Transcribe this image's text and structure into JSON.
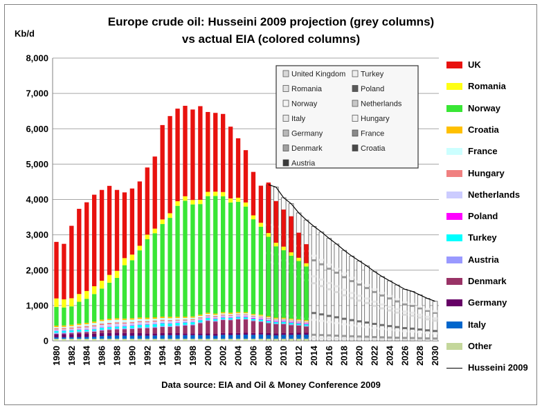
{
  "title_line1": "Europe crude oil: Husseini 2009 projection (grey columns)",
  "title_line2": "vs actual EIA (colored columns)",
  "unit": "Kb/d",
  "source": "Data source: EIA and Oil & Money Conference 2009",
  "legend": [
    {
      "label": "UK",
      "color": "#e8120f"
    },
    {
      "label": "Romania",
      "color": "#ffff14"
    },
    {
      "label": "Norway",
      "color": "#39e635"
    },
    {
      "label": "Croatia",
      "color": "#ffc000"
    },
    {
      "label": "France",
      "color": "#ccffff"
    },
    {
      "label": "Hungary",
      "color": "#f08080"
    },
    {
      "label": "Netherlands",
      "color": "#ccccff"
    },
    {
      "label": "Poland",
      "color": "#ff00ff"
    },
    {
      "label": "Turkey",
      "color": "#00ffff"
    },
    {
      "label": "Austria",
      "color": "#9999ff"
    },
    {
      "label": "Denmark",
      "color": "#993366"
    },
    {
      "label": "Germany",
      "color": "#660066"
    },
    {
      "label": "Italy",
      "color": "#0066cc"
    },
    {
      "label": "Other",
      "color": "#c4d79b"
    },
    {
      "label": "Husseini 2009",
      "color": "#000000"
    }
  ],
  "inset_legend": [
    "United Kingdom",
    "Turkey",
    "Romania",
    "Poland",
    "Norway",
    "Netherlands",
    "Italy",
    "Hungary",
    "Germany",
    "France",
    "Denmark",
    "Croatia",
    "Austria"
  ],
  "chart_data": {
    "type": "bar",
    "stacked": true,
    "title": "Europe crude oil: Husseini 2009 projection (grey columns) vs actual EIA (colored columns)",
    "ylabel": "Kb/d",
    "ylim": [
      0,
      8000
    ],
    "yticks": [
      0,
      1000,
      2000,
      3000,
      4000,
      5000,
      6000,
      7000,
      8000
    ],
    "ytick_labels": [
      "0",
      "1,000",
      "2,000",
      "3,000",
      "4,000",
      "5,000",
      "6,000",
      "7,000",
      "8,000"
    ],
    "x_tick_labels": [
      "1980",
      "1982",
      "1984",
      "1986",
      "1988",
      "1990",
      "1992",
      "1994",
      "1996",
      "1998",
      "2000",
      "2002",
      "2004",
      "2006",
      "2008",
      "2010",
      "2012",
      "2014",
      "2016",
      "2018",
      "2020",
      "2022",
      "2024",
      "2026",
      "2028",
      "2030"
    ],
    "grid": true,
    "legend_position": "right",
    "actual_years": [
      1980,
      1981,
      1982,
      1983,
      1984,
      1985,
      1986,
      1987,
      1988,
      1989,
      1990,
      1991,
      1992,
      1993,
      1994,
      1995,
      1996,
      1997,
      1998,
      1999,
      2000,
      2001,
      2002,
      2003,
      2004,
      2005,
      2006,
      2007,
      2008,
      2009,
      2010,
      2011,
      2012,
      2013
    ],
    "series": [
      {
        "name": "Other",
        "values": [
          60,
          60,
          60,
          60,
          60,
          60,
          60,
          60,
          60,
          60,
          60,
          60,
          60,
          60,
          60,
          60,
          60,
          60,
          60,
          60,
          60,
          60,
          60,
          60,
          60,
          60,
          60,
          60,
          60,
          60,
          60,
          60,
          60,
          60
        ]
      },
      {
        "name": "Italy",
        "values": [
          40,
          40,
          40,
          45,
          50,
          55,
          75,
          80,
          90,
          85,
          85,
          85,
          85,
          90,
          95,
          100,
          100,
          100,
          100,
          100,
          95,
          85,
          110,
          105,
          110,
          115,
          110,
          120,
          105,
          95,
          110,
          110,
          115,
          115
        ]
      },
      {
        "name": "Germany",
        "values": [
          90,
          90,
          90,
          90,
          85,
          85,
          85,
          80,
          80,
          75,
          70,
          70,
          65,
          60,
          60,
          55,
          55,
          50,
          50,
          50,
          50,
          50,
          50,
          50,
          50,
          50,
          50,
          50,
          50,
          50,
          50,
          50,
          50,
          50
        ]
      },
      {
        "name": "Denmark",
        "values": [
          10,
          15,
          30,
          40,
          50,
          60,
          70,
          90,
          95,
          110,
          120,
          140,
          150,
          160,
          180,
          180,
          200,
          220,
          230,
          290,
          360,
          350,
          370,
          370,
          390,
          380,
          340,
          310,
          285,
          265,
          250,
          225,
          205,
          180
        ]
      },
      {
        "name": "Austria",
        "values": [
          30,
          30,
          30,
          30,
          25,
          25,
          25,
          25,
          25,
          25,
          25,
          25,
          25,
          25,
          25,
          25,
          25,
          25,
          25,
          25,
          25,
          25,
          25,
          20,
          20,
          20,
          20,
          20,
          20,
          20,
          20,
          20,
          20,
          20
        ]
      },
      {
        "name": "Turkey",
        "values": [
          50,
          50,
          50,
          50,
          45,
          45,
          55,
          55,
          55,
          55,
          70,
          75,
          75,
          80,
          80,
          75,
          70,
          65,
          65,
          60,
          55,
          50,
          45,
          45,
          45,
          45,
          45,
          45,
          45,
          45,
          50,
          50,
          45,
          45
        ]
      },
      {
        "name": "Poland",
        "values": [
          10,
          10,
          10,
          10,
          10,
          10,
          10,
          10,
          10,
          10,
          10,
          10,
          10,
          10,
          10,
          10,
          10,
          10,
          10,
          10,
          10,
          15,
          15,
          15,
          15,
          20,
          20,
          20,
          20,
          20,
          20,
          20,
          20,
          20
        ]
      },
      {
        "name": "Netherlands",
        "values": [
          30,
          30,
          30,
          40,
          55,
          65,
          70,
          70,
          70,
          65,
          60,
          60,
          55,
          55,
          50,
          50,
          50,
          45,
          45,
          40,
          40,
          40,
          40,
          40,
          40,
          40,
          40,
          40,
          40,
          30,
          25,
          25,
          25,
          25
        ]
      },
      {
        "name": "Hungary",
        "values": [
          40,
          40,
          40,
          40,
          40,
          40,
          40,
          40,
          40,
          35,
          35,
          35,
          35,
          35,
          35,
          35,
          30,
          30,
          30,
          30,
          30,
          30,
          30,
          30,
          25,
          25,
          25,
          25,
          20,
          20,
          20,
          20,
          20,
          20
        ]
      },
      {
        "name": "France",
        "values": [
          30,
          30,
          35,
          40,
          50,
          60,
          70,
          75,
          75,
          70,
          65,
          60,
          55,
          50,
          50,
          50,
          45,
          45,
          40,
          40,
          35,
          30,
          30,
          25,
          25,
          25,
          20,
          20,
          20,
          20,
          20,
          20,
          20,
          20
        ]
      },
      {
        "name": "Croatia",
        "values": [
          40,
          40,
          40,
          40,
          40,
          40,
          40,
          40,
          40,
          40,
          40,
          40,
          40,
          40,
          40,
          40,
          35,
          35,
          35,
          35,
          35,
          35,
          35,
          35,
          35,
          30,
          30,
          30,
          30,
          30,
          30,
          30,
          30,
          30
        ]
      },
      {
        "name": "Norway",
        "values": [
          530,
          510,
          520,
          620,
          680,
          780,
          880,
          1020,
          1140,
          1510,
          1640,
          1900,
          2220,
          2380,
          2620,
          2800,
          3140,
          3280,
          3170,
          3130,
          3300,
          3330,
          3280,
          3120,
          3120,
          2990,
          2680,
          2490,
          2250,
          2020,
          1910,
          1780,
          1650,
          1520
        ]
      },
      {
        "name": "Romania",
        "values": [
          240,
          230,
          230,
          220,
          220,
          220,
          220,
          220,
          200,
          200,
          160,
          130,
          130,
          130,
          130,
          130,
          130,
          125,
          125,
          120,
          120,
          120,
          120,
          115,
          115,
          115,
          110,
          110,
          105,
          100,
          100,
          95,
          90,
          90
        ]
      },
      {
        "name": "UK",
        "values": [
          1600,
          1570,
          2050,
          2410,
          2510,
          2590,
          2570,
          2520,
          2290,
          1860,
          1870,
          1820,
          1900,
          2040,
          2670,
          2750,
          2620,
          2560,
          2560,
          2650,
          2260,
          2230,
          2210,
          2030,
          1680,
          1480,
          1230,
          1050,
          1430,
          1180,
          1050,
          1020,
          710,
          540
        ]
      }
    ],
    "projection": {
      "name": "Husseini 2009",
      "years": [
        2008,
        2009,
        2010,
        2011,
        2012,
        2013,
        2014,
        2015,
        2016,
        2017,
        2018,
        2019,
        2020,
        2021,
        2022,
        2023,
        2024,
        2025,
        2026,
        2027,
        2028,
        2029,
        2030
      ],
      "values": [
        4420,
        4350,
        4050,
        3880,
        3620,
        3420,
        3240,
        3080,
        2900,
        2740,
        2560,
        2400,
        2260,
        2120,
        1960,
        1820,
        1700,
        1580,
        1460,
        1400,
        1300,
        1200,
        1120
      ]
    }
  }
}
